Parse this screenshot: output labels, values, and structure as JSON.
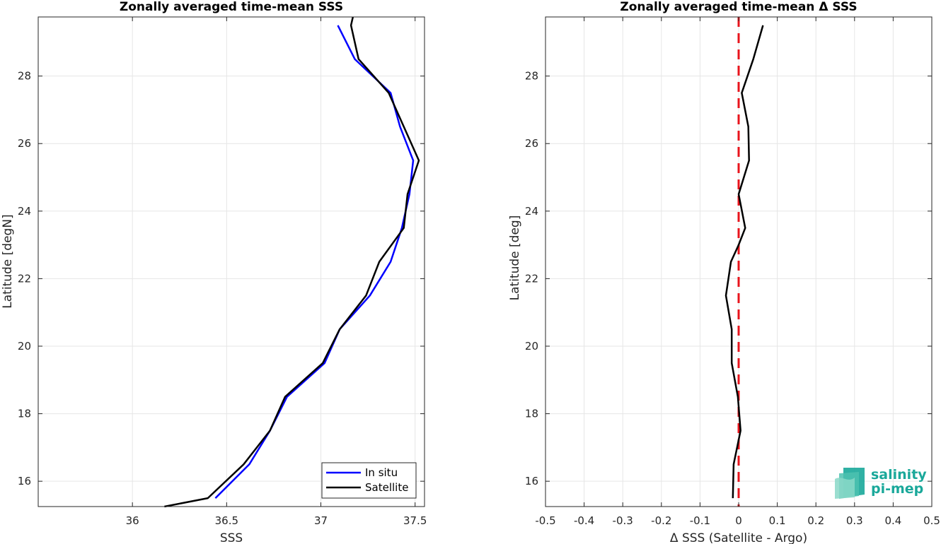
{
  "chart_data": [
    {
      "type": "line",
      "title": "Zonally averaged time-mean SSS",
      "xlabel": "SSS",
      "ylabel": "Latitude [degN]",
      "xlim": [
        35.5,
        37.55
      ],
      "ylim": [
        15.25,
        29.75
      ],
      "xticks": [
        "36",
        "36.5",
        "37",
        "37.5"
      ],
      "yticks": [
        "16",
        "18",
        "20",
        "22",
        "24",
        "26",
        "28"
      ],
      "grid": true,
      "legend_placement": "bottom-right",
      "series": [
        {
          "name": "In situ",
          "color": "#0000ff",
          "x": [
            36.44,
            36.62,
            36.73,
            36.82,
            37.02,
            37.1,
            37.26,
            37.37,
            37.43,
            37.47,
            37.49,
            37.42,
            37.37,
            37.18,
            37.09
          ],
          "y": [
            15.5,
            16.5,
            17.5,
            18.5,
            19.5,
            20.5,
            21.5,
            22.5,
            23.5,
            24.5,
            25.5,
            26.5,
            27.5,
            28.5,
            29.5
          ]
        },
        {
          "name": "Satellite",
          "color": "#000000",
          "x": [
            36.17,
            36.4,
            36.59,
            36.73,
            36.81,
            37.01,
            37.1,
            37.24,
            37.31,
            37.44,
            37.46,
            37.52,
            37.44,
            37.36,
            37.2,
            37.16,
            37.17
          ],
          "y": [
            15.25,
            15.5,
            16.5,
            17.5,
            18.5,
            19.5,
            20.5,
            21.5,
            22.5,
            23.5,
            24.5,
            25.5,
            26.5,
            27.5,
            28.5,
            29.5,
            29.75
          ]
        }
      ]
    },
    {
      "type": "line",
      "title": "Zonally averaged time-mean Δ SSS",
      "xlabel": "Δ SSS (Satellite - Argo)",
      "ylabel": "Latitude [deg]",
      "xlim": [
        -0.5,
        0.5
      ],
      "ylim": [
        15.25,
        29.75
      ],
      "xticks": [
        "-0.5",
        "-0.4",
        "-0.3",
        "-0.2",
        "-0.1",
        "0",
        "0.1",
        "0.2",
        "0.3",
        "0.4",
        "0.5"
      ],
      "yticks": [
        "16",
        "18",
        "20",
        "22",
        "24",
        "26",
        "28"
      ],
      "grid": true,
      "reference_line": {
        "x": 0,
        "color": "#e8141c",
        "style": "dashed"
      },
      "series": [
        {
          "color": "#000000",
          "x": [
            -0.015,
            -0.013,
            0.005,
            -0.002,
            -0.018,
            -0.018,
            -0.033,
            -0.02,
            0.0,
            0.017,
            0.0,
            0.027,
            0.025,
            0.008,
            0.038,
            0.063
          ],
          "y": [
            15.5,
            16.5,
            17.5,
            18.5,
            19.5,
            20.5,
            21.5,
            22.5,
            23.0,
            23.5,
            24.5,
            25.5,
            26.5,
            27.5,
            28.5,
            29.5
          ]
        }
      ]
    }
  ],
  "logo": {
    "line1": "salinity",
    "line2": "pi-mep",
    "color": "#1aa89a"
  }
}
